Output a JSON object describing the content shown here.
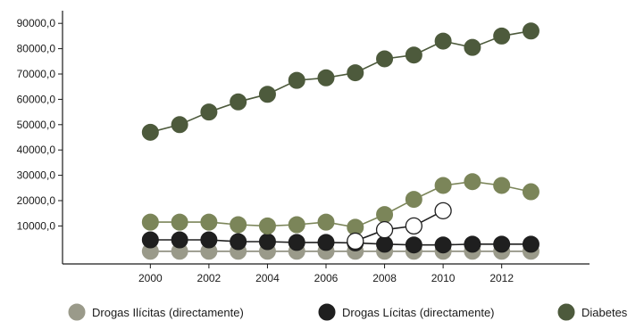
{
  "chart_data": {
    "type": "line",
    "title": "",
    "xlabel": "",
    "ylabel": "",
    "x": [
      2000,
      2001,
      2002,
      2003,
      2004,
      2005,
      2006,
      2007,
      2008,
      2009,
      2010,
      2011,
      2012,
      2013
    ],
    "xticks": [
      "2000",
      "2002",
      "2004",
      "2006",
      "2008",
      "2010",
      "2012"
    ],
    "xtick_values": [
      2000,
      2002,
      2004,
      2006,
      2008,
      2010,
      2012
    ],
    "yticks": [
      "10000,0",
      "20000,0",
      "30000,0",
      "40000,0",
      "50000,0",
      "60000,0",
      "70000,0",
      "80000,0",
      "90000,0"
    ],
    "ytick_values": [
      10000,
      20000,
      30000,
      40000,
      50000,
      60000,
      70000,
      80000,
      90000
    ],
    "xlim": [
      1997,
      2015
    ],
    "ylim": [
      -5000,
      95000
    ],
    "grid": false,
    "legend_position": "bottom",
    "series": [
      {
        "name": "Drogas Ilícitas (directamente)",
        "marker_fill": "#9a9a8a",
        "line_color": "#8a8a7a",
        "values": [
          0,
          0,
          0,
          0,
          0,
          0,
          0,
          0,
          0,
          0,
          0,
          0,
          0,
          0
        ]
      },
      {
        "name": "Drogas Lícitas (directamente)",
        "marker_fill": "#1f1f1f",
        "line_color": "#1f1f1f",
        "values": [
          4500,
          4500,
          4500,
          3800,
          3800,
          3500,
          3500,
          3300,
          2800,
          2500,
          2500,
          2800,
          2800,
          2800
        ]
      },
      {
        "name": "Diabetes",
        "marker_fill": "#4d5a3c",
        "line_color": "#4d5a3c",
        "values": [
          47000,
          50000,
          55000,
          59000,
          62000,
          67500,
          68500,
          70500,
          76000,
          77500,
          83000,
          80500,
          85000,
          87000
        ]
      },
      {
        "name": "",
        "marker_fill": "#7b8559",
        "line_color": "#7b8559",
        "values": [
          11500,
          11500,
          11500,
          10500,
          10000,
          10500,
          11500,
          9500,
          14500,
          20500,
          26000,
          27500,
          26000,
          23500
        ]
      },
      {
        "name": "",
        "marker_fill": "#ffffff",
        "line_color": "#1f1f1f",
        "marker_stroke": "#1f1f1f",
        "x": [
          2007,
          2008,
          2009,
          2010
        ],
        "values": [
          4000,
          8500,
          10000,
          16000
        ]
      }
    ],
    "legend": [
      {
        "label": "Drogas Ilícitas (directamente)",
        "color": "#9a9a8a"
      },
      {
        "label": "Drogas Lícitas (directamente)",
        "color": "#1f1f1f"
      },
      {
        "label": "Diabetes",
        "color": "#4d5a3c"
      }
    ]
  }
}
